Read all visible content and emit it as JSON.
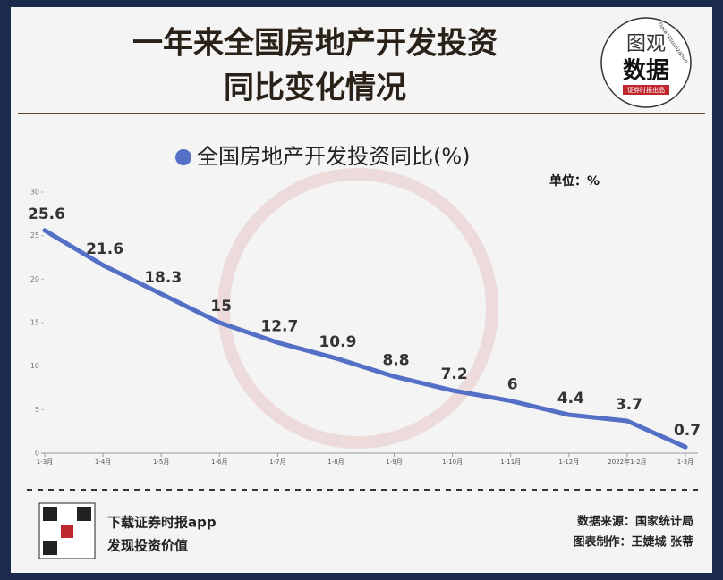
{
  "header": {
    "title": [
      "一年来全国房地产开发投资",
      "同比变化情况"
    ]
  },
  "logo": {
    "top": "图观",
    "bottom": "数据",
    "subtitle": "证券时报出品",
    "tagline": "Data Visualization"
  },
  "chart_data": {
    "type": "line",
    "unit": "单位：%",
    "categories": [
      "1-3月",
      "1-4月",
      "1-5月",
      "1-6月",
      "1-7月",
      "1-8月",
      "1-9月",
      "1-10月",
      "1-11月",
      "1-12月",
      "2022年1-2月",
      "1-3月"
    ],
    "series": [
      {
        "name": "全国房地产开发投资同比(%)",
        "color": "#5470c6",
        "values": [
          25.6,
          21.6,
          18.3,
          15,
          12.7,
          10.9,
          8.8,
          7.2,
          6,
          4.4,
          3.7,
          0.7
        ]
      }
    ],
    "ylim": [
      0,
      30
    ],
    "yticks": [
      0,
      5,
      10,
      15,
      20,
      25,
      30
    ]
  },
  "footer": {
    "app": "下载证券时报app",
    "slogan": "发现投资价值",
    "source": "数据来源：国家统计局",
    "credit": "图表制作：王婕城 张蒂"
  }
}
